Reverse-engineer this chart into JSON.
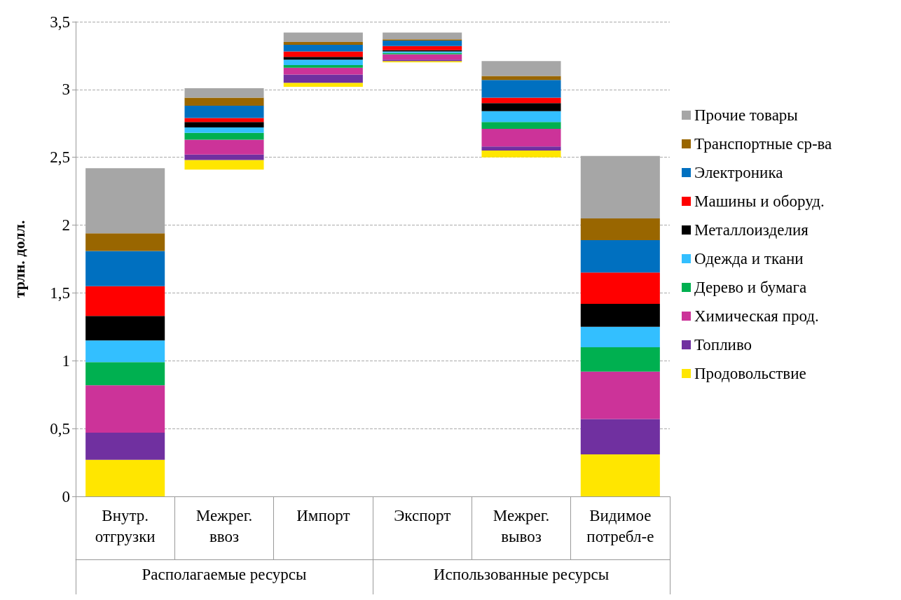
{
  "chart_data": {
    "type": "bar",
    "ylabel": "трлн. долл.",
    "categories": [
      "Внутр. отгрузки",
      "Межрег. ввоз",
      "Импорт",
      "Экспорт",
      "Межрег. вывоз",
      "Видимое потребл-е"
    ],
    "annotations": [
      "Располагаемые ресурсы",
      "Использованные ресурсы"
    ],
    "series": [
      {
        "name": "Продовольствие",
        "color": "#ffe600",
        "values": [
          0.27,
          0.07,
          0.03,
          0.01,
          0.05,
          0.31
        ],
        "base": [
          0,
          2.41,
          3.02,
          3.2,
          2.5,
          0
        ]
      },
      {
        "name": "Топливо",
        "color": "#7030a0",
        "values": [
          0.2,
          0.04,
          0.06,
          0.01,
          0.03,
          0.26
        ],
        "base": [
          0.27,
          2.48,
          3.05,
          3.21,
          2.55,
          0.31
        ]
      },
      {
        "name": "Химическая прод.",
        "color": "#cc3399",
        "values": [
          0.35,
          0.11,
          0.05,
          0.04,
          0.13,
          0.35
        ],
        "base": [
          0.47,
          2.52,
          3.11,
          3.22,
          2.58,
          0.57
        ]
      },
      {
        "name": "Дерево и бумага",
        "color": "#00b050",
        "values": [
          0.17,
          0.05,
          0.02,
          0.01,
          0.05,
          0.18
        ],
        "base": [
          0.82,
          2.63,
          3.16,
          3.26,
          2.71,
          0.92
        ]
      },
      {
        "name": "Одежда и ткани",
        "color": "#33bfff",
        "values": [
          0.16,
          0.04,
          0.04,
          0.01,
          0.08,
          0.15
        ],
        "base": [
          0.99,
          2.68,
          3.18,
          3.27,
          2.76,
          1.1
        ]
      },
      {
        "name": "Металлоизделия",
        "color": "#000000",
        "values": [
          0.18,
          0.04,
          0.02,
          0.01,
          0.06,
          0.17
        ],
        "base": [
          1.15,
          2.72,
          3.22,
          3.28,
          2.84,
          1.25
        ]
      },
      {
        "name": "Машины и оборуд.",
        "color": "#ff0000",
        "values": [
          0.22,
          0.03,
          0.04,
          0.03,
          0.04,
          0.23
        ],
        "base": [
          1.33,
          2.76,
          3.24,
          3.29,
          2.9,
          1.42
        ]
      },
      {
        "name": "Электроника",
        "color": "#0070c0",
        "values": [
          0.26,
          0.09,
          0.05,
          0.04,
          0.13,
          0.24
        ],
        "base": [
          1.55,
          2.79,
          3.28,
          3.32,
          2.94,
          1.65
        ]
      },
      {
        "name": "Транспортные ср-ва",
        "color": "#996600",
        "values": [
          0.13,
          0.06,
          0.02,
          0.01,
          0.03,
          0.16
        ],
        "base": [
          1.81,
          2.88,
          3.33,
          3.36,
          3.07,
          1.89
        ]
      },
      {
        "name": "Прочие товары",
        "color": "#a6a6a6",
        "values": [
          0.48,
          0.07,
          0.07,
          0.05,
          0.11,
          0.46
        ],
        "base": [
          1.94,
          2.94,
          3.35,
          3.37,
          3.1,
          2.05
        ]
      }
    ],
    "ylim": [
      0,
      3.5
    ],
    "yticks": [
      0,
      {
        "value": 0.5,
        "label": "0,5"
      },
      1,
      {
        "value": 1.5,
        "label": "1,5"
      },
      2,
      {
        "value": 2.5,
        "label": "2,5"
      },
      3,
      {
        "value": 3.5,
        "label": "3,5"
      }
    ],
    "grid": "y",
    "legend": "right"
  }
}
